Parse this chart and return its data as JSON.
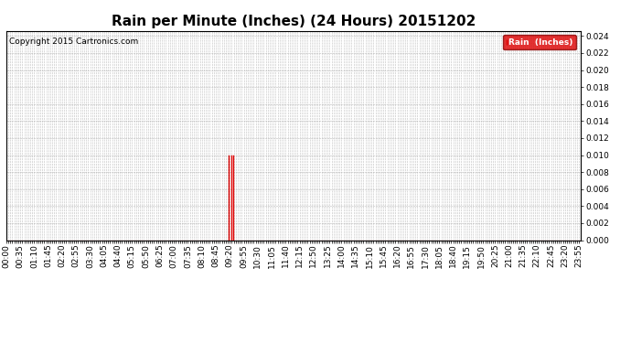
{
  "title": "Rain per Minute (Inches) (24 Hours) 20151202",
  "copyright_text": "Copyright 2015 Cartronics.com",
  "legend_label": "Rain  (Inches)",
  "legend_bg": "#dd0000",
  "legend_text_color": "#ffffff",
  "y_min": 0.0,
  "y_max": 0.024,
  "y_tick_step": 0.002,
  "line_color": "#dd0000",
  "bg_color": "#ffffff",
  "plot_bg_color": "#ffffff",
  "grid_color": "#aaaaaa",
  "title_fontsize": 11,
  "axis_fontsize": 6.5,
  "rain_data": {
    "09:18": 0.01,
    "09:23": 0.01,
    "09:28": 0.01
  },
  "total_minutes": 1440,
  "x_label_interval": 35
}
